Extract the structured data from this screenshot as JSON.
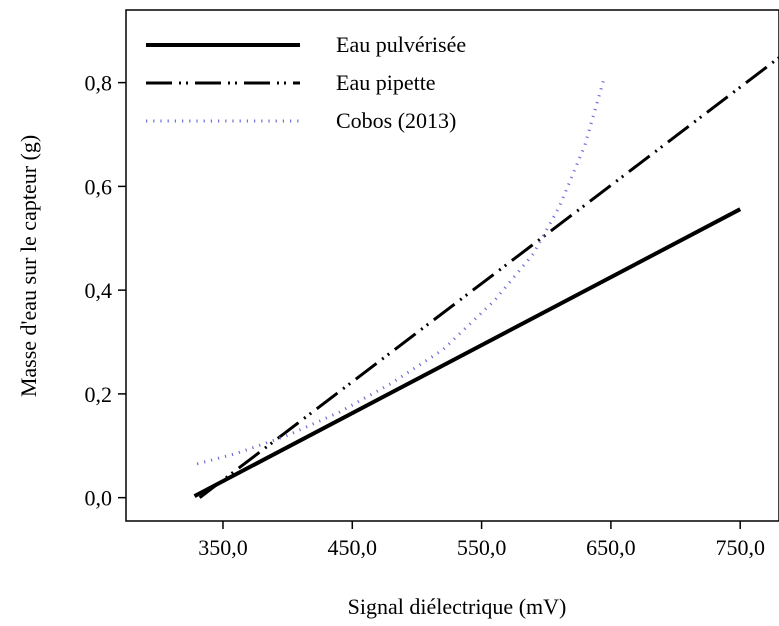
{
  "chart_data": {
    "type": "line",
    "title": "",
    "xlabel": "Signal diélectrique (mV)",
    "ylabel": "Masse d'eau sur le capteur (g)",
    "xlim": [
      275,
      780
    ],
    "ylim": [
      -0.045,
      0.94
    ],
    "x_ticks": [
      350,
      450,
      550,
      650,
      750
    ],
    "x_tick_labels": [
      "350,0",
      "450,0",
      "550,0",
      "650,0",
      "750,0"
    ],
    "y_ticks": [
      0.0,
      0.2,
      0.4,
      0.6,
      0.8
    ],
    "y_tick_labels": [
      "0,0",
      "0,2",
      "0,4",
      "0,6",
      "0,8"
    ],
    "grid": false,
    "legend_position": "top-left",
    "series": [
      {
        "name": "Eau pulvérisée",
        "style": "solid",
        "color": "#000000",
        "x": [
          328,
          750
        ],
        "y": [
          0.003,
          0.556
        ]
      },
      {
        "name": "Eau pipette",
        "style": "dash-dot-dot",
        "color": "#000000",
        "x": [
          332,
          780
        ],
        "y": [
          0.0,
          0.848
        ]
      },
      {
        "name": "Cobos (2013)",
        "style": "dotted",
        "color": "#6f6fd6",
        "x": [
          330,
          360,
          400,
          440,
          480,
          520,
          560,
          590,
          610,
          630,
          645
        ],
        "y": [
          0.065,
          0.085,
          0.12,
          0.165,
          0.22,
          0.285,
          0.38,
          0.47,
          0.56,
          0.68,
          0.81
        ]
      }
    ]
  }
}
